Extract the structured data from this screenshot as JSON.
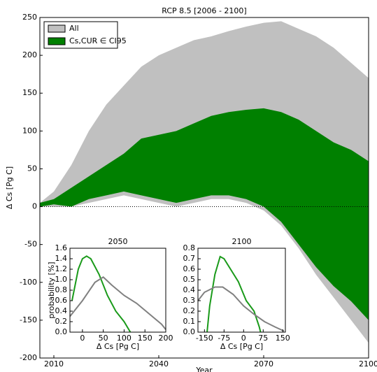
{
  "chart_data": [
    {
      "type": "area",
      "title": "RCP 8.5 [2006 - 2100]",
      "x_label": "Year",
      "y_label": "Δ Cs [Pg C]",
      "x": [
        2006,
        2010,
        2015,
        2020,
        2025,
        2030,
        2035,
        2040,
        2045,
        2050,
        2055,
        2060,
        2065,
        2070,
        2075,
        2080,
        2085,
        2090,
        2095,
        2100
      ],
      "series": [
        {
          "name": "All",
          "color": "#c0c0c0",
          "upper": [
            5,
            20,
            55,
            100,
            135,
            160,
            185,
            200,
            210,
            220,
            225,
            232,
            238,
            243,
            245,
            235,
            225,
            210,
            190,
            170
          ],
          "lower": [
            0,
            0,
            0,
            5,
            10,
            15,
            10,
            5,
            0,
            5,
            10,
            10,
            5,
            -5,
            -25,
            -55,
            -90,
            -120,
            -150,
            -180
          ]
        },
        {
          "name": "Cs,CUR ∈ CI95",
          "color": "#008000",
          "upper": [
            5,
            10,
            25,
            40,
            55,
            70,
            90,
            95,
            100,
            110,
            120,
            125,
            128,
            130,
            125,
            115,
            100,
            85,
            75,
            60
          ],
          "lower": [
            0,
            3,
            0,
            10,
            15,
            20,
            15,
            10,
            5,
            10,
            15,
            15,
            10,
            0,
            -20,
            -50,
            -80,
            -105,
            -125,
            -150
          ]
        }
      ],
      "xlim": [
        2006,
        2100
      ],
      "xticks": [
        2010,
        2040,
        2070,
        2100
      ],
      "ylim": [
        -200,
        250
      ],
      "yticks": [
        -200,
        -150,
        -100,
        -50,
        0,
        50,
        100,
        150,
        200,
        250
      ],
      "legend": "upper left"
    },
    {
      "type": "line",
      "title": "2050",
      "x_label": "Δ Cs [Pg C]",
      "y_label": "probability [%]",
      "series": [
        {
          "color": "#1a9a1a",
          "x": [
            -25,
            -10,
            0,
            10,
            20,
            40,
            60,
            80,
            100,
            115
          ],
          "values": [
            0.6,
            1.2,
            1.4,
            1.45,
            1.4,
            1.1,
            0.7,
            0.4,
            0.2,
            0.0
          ]
        },
        {
          "color": "#808080",
          "x": [
            -30,
            0,
            30,
            50,
            70,
            100,
            130,
            160,
            190,
            200
          ],
          "values": [
            0.3,
            0.6,
            0.95,
            1.05,
            0.9,
            0.7,
            0.55,
            0.35,
            0.15,
            0.05
          ]
        }
      ],
      "xlim": [
        -30,
        200
      ],
      "xticks": [
        0,
        50,
        100,
        150,
        200
      ],
      "ylim": [
        0,
        1.6
      ],
      "yticks": [
        {
          "value": 0,
          "label": "0.0"
        },
        {
          "value": 0.2,
          "label": "0.2"
        },
        {
          "value": 0.4,
          "label": "0.4"
        },
        {
          "value": 0.6,
          "label": "0.6"
        },
        {
          "value": 0.8,
          "label": "0.8"
        },
        {
          "value": 1,
          "label": "1.0"
        },
        {
          "value": 1.2,
          "label": "1.2"
        },
        {
          "value": 1.4,
          "label": "1.4"
        },
        {
          "value": 1.6,
          "label": "1.6"
        }
      ]
    },
    {
      "type": "line",
      "title": "2100",
      "x_label": "Δ Cs [Pg C]",
      "series": [
        {
          "color": "#1a9a1a",
          "x": [
            -140,
            -130,
            -110,
            -90,
            -75,
            -50,
            -20,
            10,
            40,
            60,
            65
          ],
          "values": [
            0,
            0.25,
            0.55,
            0.72,
            0.7,
            0.6,
            0.48,
            0.3,
            0.2,
            0.05,
            0
          ]
        },
        {
          "color": "#808080",
          "x": [
            -175,
            -150,
            -110,
            -80,
            -40,
            0,
            40,
            80,
            120,
            155
          ],
          "values": [
            0.3,
            0.38,
            0.43,
            0.43,
            0.36,
            0.25,
            0.17,
            0.1,
            0.05,
            0.01
          ]
        }
      ],
      "xlim": [
        -175,
        160
      ],
      "xticks": [
        -150,
        -75,
        0,
        75,
        150
      ],
      "ylim": [
        0,
        0.8
      ],
      "yticks": [
        {
          "value": 0,
          "label": "0.0"
        },
        {
          "value": 0.1,
          "label": "0.1"
        },
        {
          "value": 0.2,
          "label": "0.2"
        },
        {
          "value": 0.3,
          "label": "0.3"
        },
        {
          "value": 0.4,
          "label": "0.4"
        },
        {
          "value": 0.5,
          "label": "0.5"
        },
        {
          "value": 0.6,
          "label": "0.6"
        },
        {
          "value": 0.7,
          "label": "0.7"
        },
        {
          "value": 0.8,
          "label": "0.8"
        }
      ]
    }
  ]
}
